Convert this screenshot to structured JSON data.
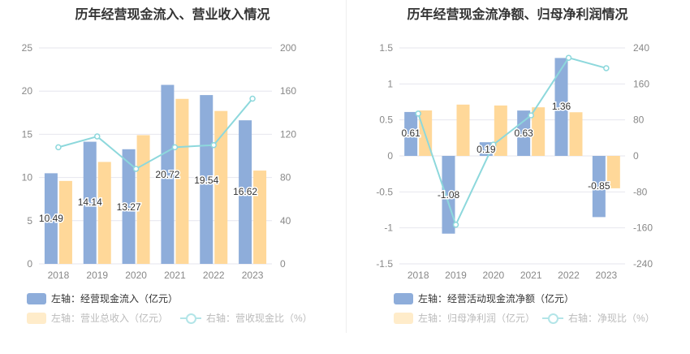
{
  "colors": {
    "bar1": "#8eadda",
    "bar2": "#ffd899",
    "line": "#8dd8dc",
    "bar2_faded": "#ffecca"
  },
  "chart_data": [
    {
      "type": "bar+line",
      "title": "历年经营现金流入、营业收入情况",
      "categories": [
        "2018",
        "2019",
        "2020",
        "2021",
        "2022",
        "2023"
      ],
      "left_ticks": [
        "0",
        "5",
        "10",
        "15",
        "20",
        "25"
      ],
      "ylim_left": [
        0,
        25
      ],
      "right_ticks": [
        "0",
        "40",
        "80",
        "120",
        "160",
        "200"
      ],
      "ylim_right": [
        0,
        200
      ],
      "series": [
        {
          "name": "左轴：经营现金流入（亿元）",
          "type": "bar",
          "axis": "left",
          "values": [
            10.49,
            14.14,
            13.27,
            20.72,
            19.54,
            16.62
          ],
          "labels": [
            "10.49",
            "14.14",
            "13.27",
            "20.72",
            "19.54",
            "16.62"
          ]
        },
        {
          "name": "左轴：营业总收入（亿元）",
          "type": "bar",
          "axis": "left",
          "values": [
            9.6,
            11.8,
            14.9,
            19.1,
            17.7,
            10.8
          ]
        },
        {
          "name": "右轴：营收现金比（%）",
          "type": "line",
          "axis": "right",
          "values": [
            108,
            118,
            88,
            108,
            110,
            153
          ]
        }
      ],
      "grid": true,
      "legend": "bottom"
    },
    {
      "type": "bar+line",
      "title": "历年经营现金流净额、归母净利润情况",
      "categories": [
        "2018",
        "2019",
        "2020",
        "2021",
        "2022",
        "2023"
      ],
      "left_ticks": [
        "-1.5",
        "-1",
        "-0.5",
        "0",
        "0.5",
        "1",
        "1.5"
      ],
      "ylim_left": [
        -1.5,
        1.5
      ],
      "right_ticks": [
        "-240",
        "-160",
        "-80",
        "0",
        "80",
        "160",
        "240"
      ],
      "ylim_right": [
        -240,
        240
      ],
      "series": [
        {
          "name": "左轴：经营活动现金流净额（亿元）",
          "type": "bar",
          "axis": "left",
          "values": [
            0.61,
            -1.08,
            0.19,
            0.63,
            1.36,
            -0.85
          ],
          "labels": [
            "0.61",
            "-1.08",
            "0.19",
            "0.63",
            "1.36",
            "-0.85"
          ]
        },
        {
          "name": "左轴：归母净利润（亿元）",
          "type": "bar",
          "axis": "right",
          "values": [
            101,
            114,
            112,
            108,
            97,
            -72
          ]
        },
        {
          "name": "右轴：净现比（%）",
          "type": "line",
          "axis": "right",
          "values": [
            94,
            -153,
            25,
            90,
            218,
            195
          ]
        }
      ],
      "grid": true,
      "legend": "bottom"
    }
  ]
}
